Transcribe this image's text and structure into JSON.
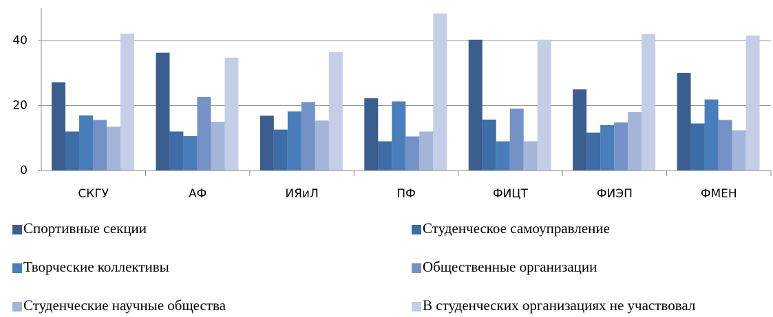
{
  "chart_data": {
    "type": "bar",
    "categories": [
      "СКГУ",
      "АФ",
      "ИЯиЛ",
      "ПФ",
      "ФИЦТ",
      "ФИЭП",
      "ФМЕН"
    ],
    "series": [
      {
        "name": "Спортивные секции",
        "color": "#3a5f8e",
        "values": [
          27.2,
          36.3,
          16.9,
          22.3,
          40.3,
          25,
          30.1
        ]
      },
      {
        "name": "Студенческое самоуправление",
        "color": "#3d6ca6",
        "values": [
          12,
          12,
          12.6,
          9,
          15.7,
          11.7,
          14.5
        ]
      },
      {
        "name": "Творческие коллективы",
        "color": "#4a7ebb",
        "values": [
          17,
          10.6,
          18.2,
          21.3,
          9,
          14,
          21.9
        ]
      },
      {
        "name": "Общественные организации",
        "color": "#7592c7",
        "values": [
          15.6,
          22.7,
          21.1,
          10.5,
          19.1,
          14.8,
          15.6
        ]
      },
      {
        "name": "Студенческие научные общества",
        "color": "#a3b5d9",
        "values": [
          13.5,
          15,
          15.4,
          12,
          9,
          18,
          12.4
        ]
      },
      {
        "name": "В студенческих организациях не участвовал",
        "color": "#c4cfe7",
        "values": [
          42.2,
          34.8,
          36.5,
          48.4,
          40.3,
          42.1,
          41.6
        ]
      }
    ],
    "ylim": [
      0,
      50
    ],
    "yticks": [
      0,
      20,
      40
    ],
    "grid": true,
    "legend": "bottom"
  }
}
